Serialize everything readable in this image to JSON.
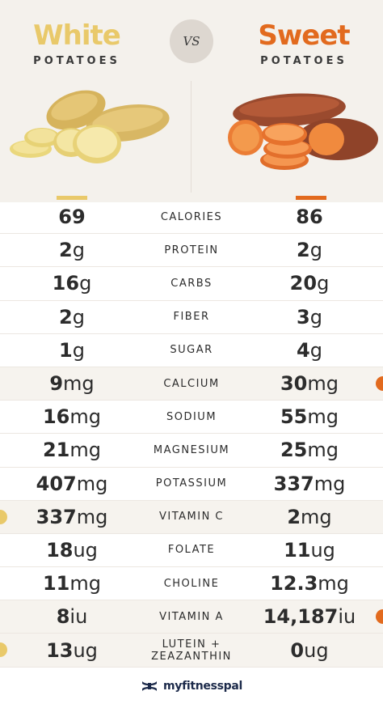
{
  "header": {
    "left": {
      "title": "White",
      "subtitle": "POTATOES",
      "color": "#e9c96a"
    },
    "right": {
      "title": "Sweet",
      "subtitle": "POTATOES",
      "color": "#e26a1e"
    },
    "vs": "VS"
  },
  "rows": [
    {
      "left_num": "69",
      "left_unit": "",
      "label": "CALORIES",
      "right_num": "86",
      "right_unit": "",
      "shaded": false,
      "dot": ""
    },
    {
      "left_num": "2",
      "left_unit": "g",
      "label": "PROTEIN",
      "right_num": "2",
      "right_unit": "g",
      "shaded": false,
      "dot": ""
    },
    {
      "left_num": "16",
      "left_unit": "g",
      "label": "CARBS",
      "right_num": "20",
      "right_unit": "g",
      "shaded": false,
      "dot": ""
    },
    {
      "left_num": "2",
      "left_unit": "g",
      "label": "FIBER",
      "right_num": "3",
      "right_unit": "g",
      "shaded": false,
      "dot": ""
    },
    {
      "left_num": "1",
      "left_unit": "g",
      "label": "SUGAR",
      "right_num": "4",
      "right_unit": "g",
      "shaded": false,
      "dot": ""
    },
    {
      "left_num": "9",
      "left_unit": "mg",
      "label": "CALCIUM",
      "right_num": "30",
      "right_unit": "mg",
      "shaded": true,
      "dot": "right"
    },
    {
      "left_num": "16",
      "left_unit": "mg",
      "label": "SODIUM",
      "right_num": "55",
      "right_unit": "mg",
      "shaded": false,
      "dot": ""
    },
    {
      "left_num": "21",
      "left_unit": "mg",
      "label": "MAGNESIUM",
      "right_num": "25",
      "right_unit": "mg",
      "shaded": false,
      "dot": ""
    },
    {
      "left_num": "407",
      "left_unit": "mg",
      "label": "POTASSIUM",
      "right_num": "337",
      "right_unit": "mg",
      "shaded": false,
      "dot": ""
    },
    {
      "left_num": "337",
      "left_unit": "mg",
      "label": "VITAMIN C",
      "right_num": "2",
      "right_unit": "mg",
      "shaded": true,
      "dot": "left"
    },
    {
      "left_num": "18",
      "left_unit": "ug",
      "label": "FOLATE",
      "right_num": "11",
      "right_unit": "ug",
      "shaded": false,
      "dot": ""
    },
    {
      "left_num": "11",
      "left_unit": "mg",
      "label": "CHOLINE",
      "right_num": "12.3",
      "right_unit": "mg",
      "shaded": false,
      "dot": ""
    },
    {
      "left_num": "8",
      "left_unit": "iu",
      "label": "VITAMIN A",
      "right_num": "14,187",
      "right_unit": "iu",
      "shaded": true,
      "dot": "right"
    },
    {
      "left_num": "13",
      "left_unit": "ug",
      "label": "LUTEIN + ZEAZANTHIN",
      "right_num": "0",
      "right_unit": "ug",
      "shaded": true,
      "dot": "left"
    }
  ],
  "footer": {
    "brand": "myfitnesspal",
    "logo_icon": "under-armour-logo-icon"
  },
  "colors": {
    "white_accent": "#e9c96a",
    "sweet_accent": "#e26a1e",
    "brand": "#1c2a4a"
  }
}
